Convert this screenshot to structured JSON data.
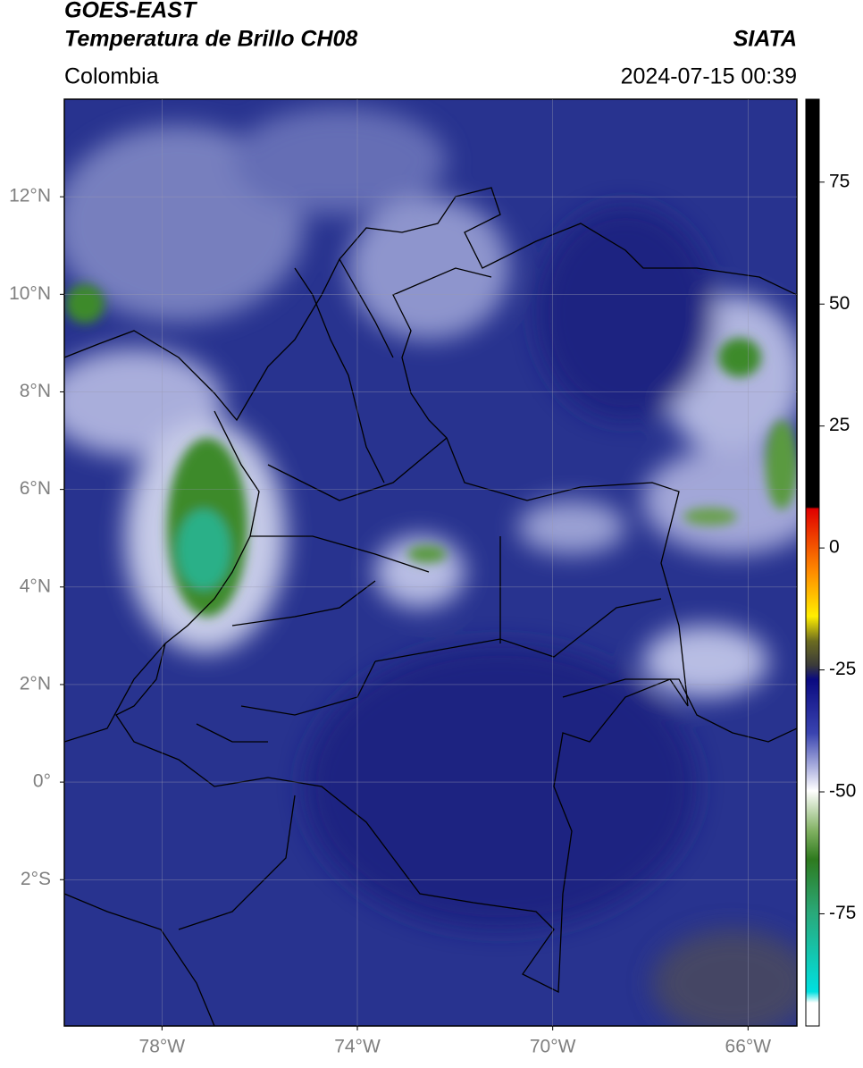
{
  "header": {
    "title": "GOES-EAST",
    "subtitle": "Temperatura de Brillo CH08",
    "source": "SIATA",
    "region": "Colombia",
    "timestamp": "2024-07-15 00:39"
  },
  "map": {
    "lonlim": [
      -80,
      -65
    ],
    "latlim": [
      -5,
      14
    ],
    "lon_ticks": [
      {
        "value": -78,
        "label": "78°W"
      },
      {
        "value": -74,
        "label": "74°W"
      },
      {
        "value": -70,
        "label": "70°W"
      },
      {
        "value": -66,
        "label": "66°W"
      }
    ],
    "lat_ticks": [
      {
        "value": 12,
        "label": "12°N"
      },
      {
        "value": 10,
        "label": "10°N"
      },
      {
        "value": 8,
        "label": "8°N"
      },
      {
        "value": 6,
        "label": "6°N"
      },
      {
        "value": 4,
        "label": "4°N"
      },
      {
        "value": 2,
        "label": "2°N"
      },
      {
        "value": 0,
        "label": "0°"
      },
      {
        "value": -2,
        "label": "2°S"
      }
    ],
    "grid": true
  },
  "colorbar": {
    "lim": [
      -98,
      92
    ],
    "ticks": [
      75,
      50,
      25,
      0,
      -25,
      -50,
      -75
    ]
  }
}
